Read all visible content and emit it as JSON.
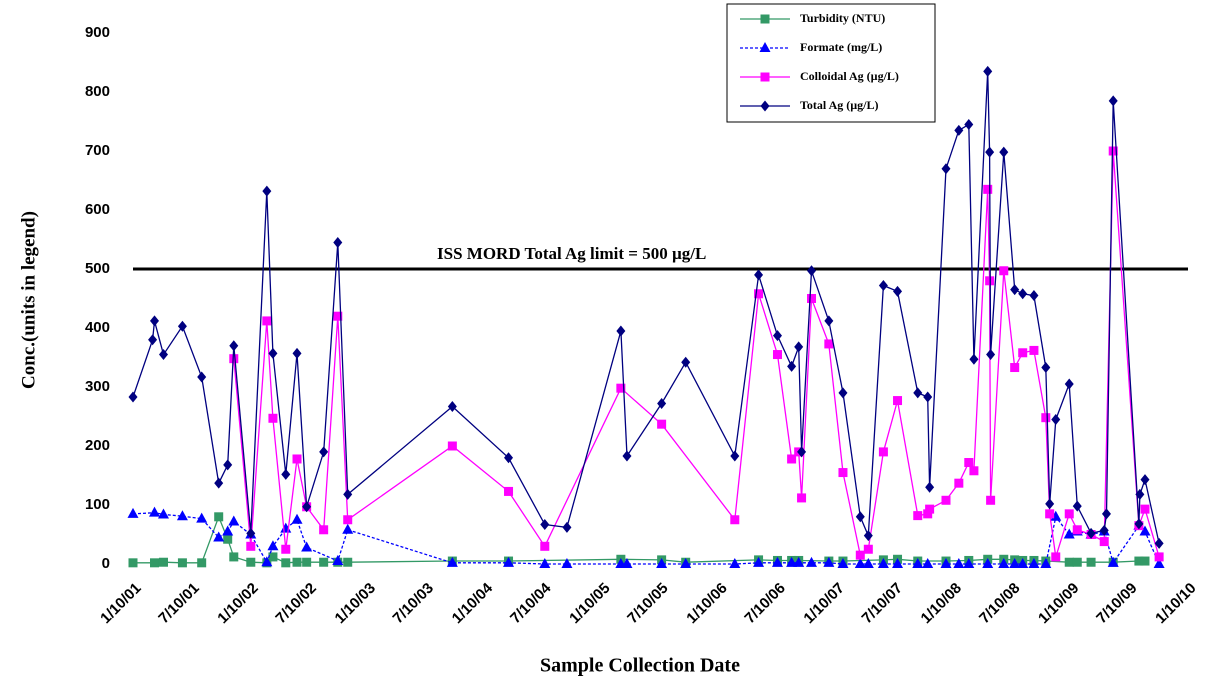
{
  "chart_data": {
    "type": "line",
    "x_label": "Sample Collection Date",
    "y_label": "Conc.(units in legend)",
    "ylim": [
      0,
      900
    ],
    "yticks": [
      0,
      100,
      200,
      300,
      400,
      500,
      600,
      700,
      800,
      900
    ],
    "xlim": [
      "2001-01-10",
      "2010-01-10"
    ],
    "xticks": [
      {
        "value": "2001-01-10",
        "label": "1/10/01"
      },
      {
        "value": "2001-07-10",
        "label": "7/10/01"
      },
      {
        "value": "2002-01-10",
        "label": "1/10/02"
      },
      {
        "value": "2002-07-10",
        "label": "7/10/02"
      },
      {
        "value": "2003-01-10",
        "label": "1/10/03"
      },
      {
        "value": "2003-07-10",
        "label": "7/10/03"
      },
      {
        "value": "2004-01-10",
        "label": "1/10/04"
      },
      {
        "value": "2004-07-10",
        "label": "7/10/04"
      },
      {
        "value": "2005-01-10",
        "label": "1/10/05"
      },
      {
        "value": "2005-07-10",
        "label": "7/10/05"
      },
      {
        "value": "2006-01-10",
        "label": "1/10/06"
      },
      {
        "value": "2006-07-10",
        "label": "7/10/06"
      },
      {
        "value": "2007-01-10",
        "label": "1/10/07"
      },
      {
        "value": "2007-07-10",
        "label": "7/10/07"
      },
      {
        "value": "2008-01-10",
        "label": "1/10/08"
      },
      {
        "value": "2008-07-10",
        "label": "7/10/08"
      },
      {
        "value": "2009-01-10",
        "label": "1/10/09"
      },
      {
        "value": "2009-07-10",
        "label": "7/10/09"
      },
      {
        "value": "2010-01-10",
        "label": "1/10/10"
      }
    ],
    "limit": {
      "value": 500,
      "label": "ISS MORD Total Ag limit = 500 µg/L"
    },
    "legend": "top-right",
    "series": [
      {
        "name": "Turbidity (NTU)",
        "color": "#339966",
        "marker": "square",
        "dash": false,
        "x": [
          "2001-01-10",
          "2001-03-18",
          "2001-04-15",
          "2001-06-13",
          "2001-08-12",
          "2001-10-04",
          "2001-11-01",
          "2001-11-20",
          "2002-01-12",
          "2002-03-03",
          "2002-03-22",
          "2002-05-01",
          "2002-06-05",
          "2002-07-05",
          "2002-08-27",
          "2002-10-10",
          "2002-11-10",
          "2003-10-02",
          "2004-03-25",
          "2005-03-10",
          "2005-07-15",
          "2005-09-28",
          "2006-05-13",
          "2006-07-11",
          "2006-08-24",
          "2006-09-15",
          "2006-12-18",
          "2007-01-31",
          "2007-06-06",
          "2007-07-20",
          "2007-09-21",
          "2007-12-18",
          "2008-02-27",
          "2008-04-26",
          "2008-06-15",
          "2008-07-19",
          "2008-08-13",
          "2008-09-17",
          "2008-10-24",
          "2009-01-05",
          "2009-01-30",
          "2009-03-14",
          "2009-05-22",
          "2009-08-10",
          "2009-08-29"
        ],
        "values": [
          2,
          2,
          3,
          2,
          2,
          80,
          42,
          12,
          3,
          2,
          12,
          2,
          3,
          3,
          3,
          3,
          3,
          5,
          5,
          8,
          7,
          3,
          7,
          6,
          6,
          6,
          5,
          5,
          7,
          8,
          5,
          5,
          6,
          8,
          8,
          7,
          6,
          6,
          5,
          3,
          3,
          3,
          3,
          5,
          5
        ]
      },
      {
        "name": "Formate  (mg/L)",
        "color": "#0000ff",
        "marker": "triangle",
        "dash": true,
        "x": [
          "2001-01-10",
          "2001-03-18",
          "2001-04-15",
          "2001-06-13",
          "2001-08-12",
          "2001-10-04",
          "2001-11-01",
          "2001-11-20",
          "2002-01-12",
          "2002-03-03",
          "2002-03-22",
          "2002-05-01",
          "2002-06-05",
          "2002-07-05",
          "2002-10-10",
          "2002-11-10",
          "2003-10-02",
          "2004-03-25",
          "2004-07-16",
          "2004-09-23",
          "2005-03-10",
          "2005-03-29",
          "2005-07-15",
          "2005-09-28",
          "2006-02-28",
          "2006-05-13",
          "2006-07-11",
          "2006-08-24",
          "2006-09-15",
          "2006-10-25",
          "2006-12-18",
          "2007-01-31",
          "2007-03-26",
          "2007-04-20",
          "2007-06-06",
          "2007-07-20",
          "2007-09-21",
          "2007-10-22",
          "2007-12-18",
          "2008-01-27",
          "2008-02-27",
          "2008-04-26",
          "2008-06-15",
          "2008-07-19",
          "2008-08-13",
          "2008-09-17",
          "2008-10-24",
          "2008-11-24",
          "2009-01-05",
          "2009-01-30",
          "2009-03-14",
          "2009-04-24",
          "2009-05-22",
          "2009-08-10",
          "2009-08-29",
          "2009-10-12"
        ],
        "values": [
          85,
          87,
          84,
          81,
          77,
          45,
          55,
          72,
          50,
          3,
          30,
          60,
          75,
          28,
          5,
          58,
          2,
          2,
          0,
          0,
          0,
          0,
          0,
          0,
          0,
          2,
          2,
          2,
          2,
          2,
          2,
          0,
          0,
          0,
          0,
          0,
          0,
          0,
          0,
          0,
          0,
          0,
          0,
          0,
          0,
          0,
          0,
          80,
          50,
          55,
          50,
          55,
          2,
          65,
          55,
          0
        ]
      },
      {
        "name": "Colloidal Ag (µg/L)",
        "color": "#ff00ff",
        "marker": "square",
        "dash": false,
        "x": [
          "2001-11-20",
          "2002-01-12",
          "2002-03-03",
          "2002-03-22",
          "2002-05-01",
          "2002-06-05",
          "2002-07-05",
          "2002-08-27",
          "2002-10-10",
          "2002-11-10",
          "2003-10-02",
          "2004-03-25",
          "2004-07-16",
          "2005-03-10",
          "2005-07-15",
          "2006-02-28",
          "2006-05-13",
          "2006-07-11",
          "2006-08-24",
          "2006-09-15",
          "2006-09-24",
          "2006-10-25",
          "2006-12-18",
          "2007-01-31",
          "2007-03-26",
          "2007-04-20",
          "2007-06-06",
          "2007-07-20",
          "2007-09-21",
          "2007-10-22",
          "2007-10-28",
          "2007-12-18",
          "2008-01-27",
          "2008-02-27",
          "2008-03-14",
          "2008-04-26",
          "2008-05-02",
          "2008-05-05",
          "2008-06-15",
          "2008-07-19",
          "2008-08-13",
          "2008-09-17",
          "2008-10-24",
          "2008-11-05",
          "2008-11-24",
          "2009-01-05",
          "2009-01-30",
          "2009-03-14",
          "2009-04-24",
          "2009-05-22",
          "2009-08-10",
          "2009-08-29",
          "2009-10-12"
        ],
        "values": [
          348,
          30,
          412,
          247,
          25,
          178,
          97,
          58,
          420,
          75,
          200,
          123,
          30,
          298,
          237,
          75,
          458,
          355,
          178,
          190,
          112,
          450,
          373,
          155,
          15,
          25,
          190,
          277,
          82,
          85,
          93,
          108,
          137,
          172,
          158,
          635,
          480,
          108,
          497,
          333,
          358,
          362,
          248,
          85,
          12,
          85,
          58,
          50,
          38,
          700,
          65,
          93,
          12
        ]
      },
      {
        "name": "Total Ag (µg/L)",
        "color": "#000080",
        "marker": "diamond",
        "dash": false,
        "x": [
          "2001-01-10",
          "2001-03-12",
          "2001-03-18",
          "2001-04-15",
          "2001-06-13",
          "2001-08-12",
          "2001-10-04",
          "2001-11-01",
          "2001-11-20",
          "2002-01-12",
          "2002-03-03",
          "2002-03-22",
          "2002-05-01",
          "2002-06-05",
          "2002-07-05",
          "2002-08-27",
          "2002-10-10",
          "2002-11-10",
          "2003-10-02",
          "2004-03-25",
          "2004-07-16",
          "2004-09-23",
          "2005-03-10",
          "2005-03-29",
          "2005-07-15",
          "2005-09-28",
          "2006-02-28",
          "2006-05-13",
          "2006-07-11",
          "2006-08-24",
          "2006-09-15",
          "2006-09-24",
          "2006-10-25",
          "2006-12-18",
          "2007-01-31",
          "2007-03-26",
          "2007-04-20",
          "2007-06-06",
          "2007-07-20",
          "2007-09-21",
          "2007-10-22",
          "2007-10-28",
          "2007-12-18",
          "2008-01-27",
          "2008-02-27",
          "2008-03-14",
          "2008-04-26",
          "2008-05-02",
          "2008-05-05",
          "2008-06-15",
          "2008-07-19",
          "2008-08-13",
          "2008-09-17",
          "2008-10-24",
          "2008-11-05",
          "2008-11-24",
          "2009-01-05",
          "2009-01-30",
          "2009-03-14",
          "2009-04-24",
          "2009-05-01",
          "2009-05-22",
          "2009-08-10",
          "2009-08-13",
          "2009-08-29",
          "2009-10-12"
        ],
        "values": [
          283,
          380,
          412,
          355,
          403,
          317,
          137,
          168,
          370,
          52,
          632,
          357,
          152,
          357,
          97,
          190,
          545,
          118,
          267,
          180,
          67,
          62,
          395,
          183,
          272,
          342,
          183,
          490,
          387,
          335,
          368,
          190,
          497,
          412,
          290,
          80,
          48,
          472,
          462,
          290,
          283,
          130,
          670,
          735,
          745,
          347,
          835,
          698,
          355,
          698,
          465,
          458,
          455,
          333,
          102,
          245,
          305,
          98,
          52,
          57,
          85,
          785,
          68,
          118,
          143,
          35
        ]
      }
    ]
  }
}
